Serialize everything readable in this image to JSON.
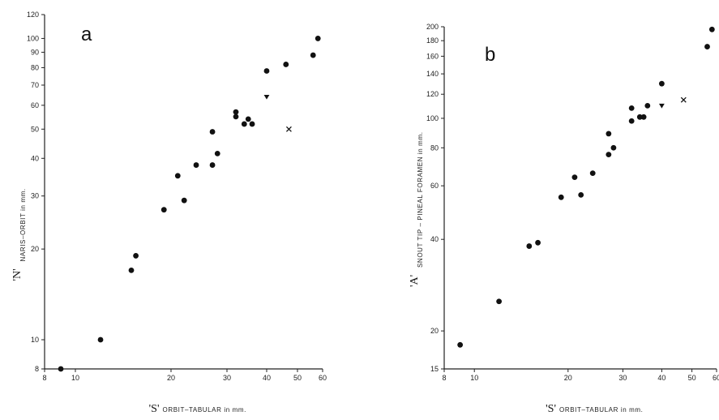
{
  "chart_data": [
    {
      "type": "scatter",
      "panel_label": "a",
      "x_scale": "log",
      "y_scale": "log",
      "xlim": [
        8,
        60
      ],
      "ylim": [
        8,
        120
      ],
      "xticks": [
        8,
        10,
        20,
        30,
        40,
        50,
        60
      ],
      "yticks": [
        8,
        10,
        20,
        30,
        40,
        50,
        60,
        70,
        80,
        90,
        100,
        120
      ],
      "xlabel_symbol": "'S'",
      "xlabel_text": "ORBIT–TABULAR in mm.",
      "ylabel_symbol": "'N'",
      "ylabel_text": "NARIS–ORBIT in mm.",
      "grid": false,
      "series": [
        {
          "marker": "circle",
          "x": [
            9,
            12,
            15,
            15.5,
            19,
            21,
            22,
            24,
            27,
            27,
            28,
            32,
            32,
            34,
            35,
            36,
            40,
            46,
            56,
            58
          ],
          "y": [
            8,
            10,
            17,
            19,
            27,
            35,
            29,
            38,
            38,
            49,
            41.5,
            57,
            55,
            52,
            54,
            52,
            78,
            82,
            88,
            100
          ]
        },
        {
          "marker": "triangle",
          "x": [
            40
          ],
          "y": [
            64
          ]
        },
        {
          "marker": "x",
          "x": [
            47
          ],
          "y": [
            50
          ]
        }
      ]
    },
    {
      "type": "scatter",
      "panel_label": "b",
      "x_scale": "log",
      "y_scale": "log",
      "xlim": [
        8,
        60
      ],
      "ylim": [
        15,
        200
      ],
      "xticks": [
        8,
        10,
        20,
        30,
        40,
        50,
        60
      ],
      "yticks": [
        15,
        20,
        40,
        60,
        80,
        100,
        120,
        140,
        160,
        180,
        200
      ],
      "xlabel_symbol": "'S'",
      "xlabel_text": "ORBIT–TABULAR in mm.",
      "ylabel_symbol": "'A'",
      "ylabel_text": "SNOUT TIP – PINEAL FORAMEN in mm.",
      "grid": false,
      "series": [
        {
          "marker": "circle",
          "x": [
            9,
            12,
            15,
            16,
            19,
            21,
            22,
            24,
            27,
            27,
            28,
            32,
            32,
            34,
            35,
            36,
            40,
            56,
            58
          ],
          "y": [
            18,
            25,
            38,
            39,
            55,
            64,
            56,
            66,
            76,
            89,
            80,
            108,
            98,
            101,
            101,
            110,
            130,
            172,
            196
          ]
        },
        {
          "marker": "triangle",
          "x": [
            40
          ],
          "y": [
            110
          ]
        },
        {
          "marker": "x",
          "x": [
            47
          ],
          "y": [
            115
          ]
        }
      ]
    }
  ]
}
